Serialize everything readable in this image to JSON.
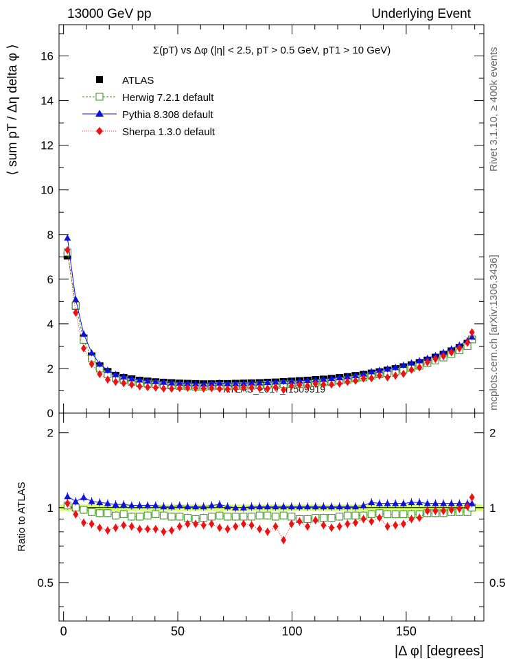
{
  "header": {
    "left": "13000 GeV pp",
    "right": "Underlying Event"
  },
  "side_labels": {
    "rivet": "Rivet 3.1.10, ≥ 400k events",
    "mcplots": "mcplots.cern.ch [arXiv:1306.3436]"
  },
  "chart_data": [
    {
      "type": "scatter",
      "panel": "main",
      "title": "Σ(pT) vs Δφ (|η| < 2.5, pT > 0.5 GeV, pT1 > 10 GeV)",
      "ylabel": "⟨ sum pT / Δη delta φ ⟩",
      "xlim": [
        -2,
        184
      ],
      "ylim": [
        0,
        17.4
      ],
      "yticks": [
        0,
        2,
        4,
        6,
        8,
        10,
        12,
        14,
        16
      ],
      "legend_position": "top-left",
      "x": [
        1.7,
        5.3,
        8.8,
        12.3,
        15.8,
        19.3,
        22.8,
        26.3,
        29.8,
        33.3,
        36.8,
        40.3,
        43.8,
        47.3,
        50.8,
        54.3,
        57.8,
        61.3,
        64.8,
        68.3,
        71.8,
        75.3,
        78.8,
        82.3,
        85.8,
        89.3,
        92.8,
        96.3,
        99.8,
        103.3,
        106.8,
        110.3,
        113.8,
        117.3,
        120.8,
        124.3,
        127.8,
        131.3,
        134.8,
        138.3,
        141.8,
        145.3,
        148.8,
        152.3,
        155.8,
        159.3,
        162.8,
        166.3,
        169.8,
        173.3,
        176.8,
        178.8
      ],
      "series": [
        {
          "name": "ATLAS",
          "marker": "square-filled",
          "color": "#000000",
          "values": [
            7.05,
            4.8,
            3.35,
            2.55,
            2.1,
            1.85,
            1.68,
            1.58,
            1.52,
            1.46,
            1.42,
            1.39,
            1.37,
            1.35,
            1.33,
            1.32,
            1.31,
            1.3,
            1.3,
            1.31,
            1.31,
            1.32,
            1.33,
            1.34,
            1.35,
            1.37,
            1.38,
            1.4,
            1.42,
            1.44,
            1.46,
            1.49,
            1.51,
            1.54,
            1.58,
            1.62,
            1.67,
            1.72,
            1.78,
            1.84,
            1.91,
            1.98,
            2.06,
            2.15,
            2.25,
            2.36,
            2.49,
            2.62,
            2.77,
            2.93,
            3.12,
            3.3
          ]
        },
        {
          "name": "Herwig 7.2.1 default",
          "marker": "square-open",
          "color": "#3a8a1e",
          "values": [
            7.2,
            4.82,
            3.28,
            2.45,
            2.0,
            1.75,
            1.57,
            1.48,
            1.4,
            1.35,
            1.32,
            1.3,
            1.27,
            1.24,
            1.22,
            1.2,
            1.18,
            1.18,
            1.2,
            1.22,
            1.2,
            1.21,
            1.22,
            1.23,
            1.25,
            1.28,
            1.27,
            1.3,
            1.3,
            1.3,
            1.32,
            1.36,
            1.38,
            1.4,
            1.45,
            1.5,
            1.55,
            1.6,
            1.68,
            1.74,
            1.8,
            1.86,
            1.94,
            2.03,
            2.12,
            2.24,
            2.36,
            2.49,
            2.65,
            2.81,
            3.0,
            3.3
          ]
        },
        {
          "name": "Pythia 8.308 default",
          "marker": "triangle-up-filled",
          "color": "#1010dd",
          "values": [
            7.85,
            5.1,
            3.55,
            2.7,
            2.2,
            1.92,
            1.73,
            1.63,
            1.55,
            1.49,
            1.45,
            1.42,
            1.39,
            1.36,
            1.35,
            1.33,
            1.32,
            1.31,
            1.33,
            1.35,
            1.32,
            1.32,
            1.33,
            1.36,
            1.36,
            1.38,
            1.4,
            1.42,
            1.43,
            1.45,
            1.47,
            1.5,
            1.52,
            1.56,
            1.59,
            1.64,
            1.69,
            1.76,
            1.86,
            1.92,
            1.98,
            2.05,
            2.15,
            2.25,
            2.35,
            2.46,
            2.58,
            2.72,
            2.88,
            3.05,
            3.25,
            3.42
          ]
        },
        {
          "name": "Sherpa 1.3.0 default",
          "marker": "diamond-filled",
          "color": "#ee1111",
          "values": [
            7.3,
            4.5,
            2.9,
            2.2,
            1.75,
            1.5,
            1.4,
            1.34,
            1.28,
            1.2,
            1.16,
            1.14,
            1.1,
            1.09,
            1.12,
            1.13,
            1.12,
            1.1,
            1.12,
            1.09,
            1.08,
            1.11,
            1.14,
            1.14,
            1.11,
            1.1,
            1.16,
            1.04,
            1.22,
            1.26,
            1.22,
            1.32,
            1.28,
            1.28,
            1.32,
            1.4,
            1.45,
            1.55,
            1.56,
            1.68,
            1.6,
            1.68,
            1.76,
            1.94,
            2.05,
            2.28,
            2.42,
            2.55,
            2.72,
            2.9,
            3.15,
            3.62
          ]
        }
      ]
    },
    {
      "type": "scatter",
      "panel": "ratio",
      "ylabel": "Ratio to ATLAS",
      "xlabel": "|Δ φ| [degrees]",
      "xlim": [
        -2,
        184
      ],
      "ylim": [
        0.35,
        2.4
      ],
      "yticks": [
        0.5,
        1,
        2
      ],
      "xticks": [
        0,
        50,
        100,
        150
      ],
      "reference_band": {
        "low": 0.97,
        "high": 1.03,
        "color": "#ccff33"
      },
      "series": [
        {
          "name": "Herwig 7.2.1 default",
          "values": [
            1.02,
            1.0,
            0.98,
            0.96,
            0.95,
            0.95,
            0.93,
            0.94,
            0.92,
            0.92,
            0.93,
            0.94,
            0.93,
            0.92,
            0.92,
            0.91,
            0.9,
            0.91,
            0.92,
            0.93,
            0.92,
            0.92,
            0.92,
            0.92,
            0.93,
            0.93,
            0.92,
            0.93,
            0.92,
            0.9,
            0.9,
            0.91,
            0.91,
            0.91,
            0.92,
            0.93,
            0.93,
            0.93,
            0.94,
            0.95,
            0.94,
            0.94,
            0.94,
            0.94,
            0.94,
            0.95,
            0.95,
            0.95,
            0.96,
            0.96,
            0.96,
            1.0
          ]
        },
        {
          "name": "Pythia 8.308 default",
          "values": [
            1.11,
            1.06,
            1.1,
            1.06,
            1.05,
            1.04,
            1.03,
            1.03,
            1.02,
            1.02,
            1.02,
            1.02,
            1.01,
            1.01,
            1.02,
            1.01,
            1.01,
            1.01,
            1.02,
            1.03,
            1.01,
            1.0,
            1.0,
            1.01,
            1.01,
            1.01,
            1.01,
            1.01,
            1.01,
            1.01,
            1.01,
            1.01,
            1.01,
            1.01,
            1.01,
            1.01,
            1.01,
            1.02,
            1.05,
            1.04,
            1.04,
            1.04,
            1.04,
            1.05,
            1.05,
            1.04,
            1.04,
            1.04,
            1.04,
            1.04,
            1.04,
            1.04
          ]
        },
        {
          "name": "Sherpa 1.3.0 default",
          "values": [
            1.04,
            0.94,
            0.87,
            0.86,
            0.83,
            0.81,
            0.83,
            0.85,
            0.84,
            0.82,
            0.82,
            0.82,
            0.8,
            0.81,
            0.84,
            0.86,
            0.86,
            0.85,
            0.86,
            0.83,
            0.82,
            0.84,
            0.86,
            0.85,
            0.82,
            0.8,
            0.84,
            0.74,
            0.86,
            0.88,
            0.84,
            0.89,
            0.85,
            0.83,
            0.84,
            0.86,
            0.87,
            0.9,
            0.88,
            0.91,
            0.84,
            0.85,
            0.86,
            0.9,
            0.91,
            0.97,
            0.97,
            0.97,
            0.98,
            0.99,
            1.01,
            1.1
          ]
        }
      ]
    }
  ],
  "watermark": "ATLAS_2017_I1509919"
}
